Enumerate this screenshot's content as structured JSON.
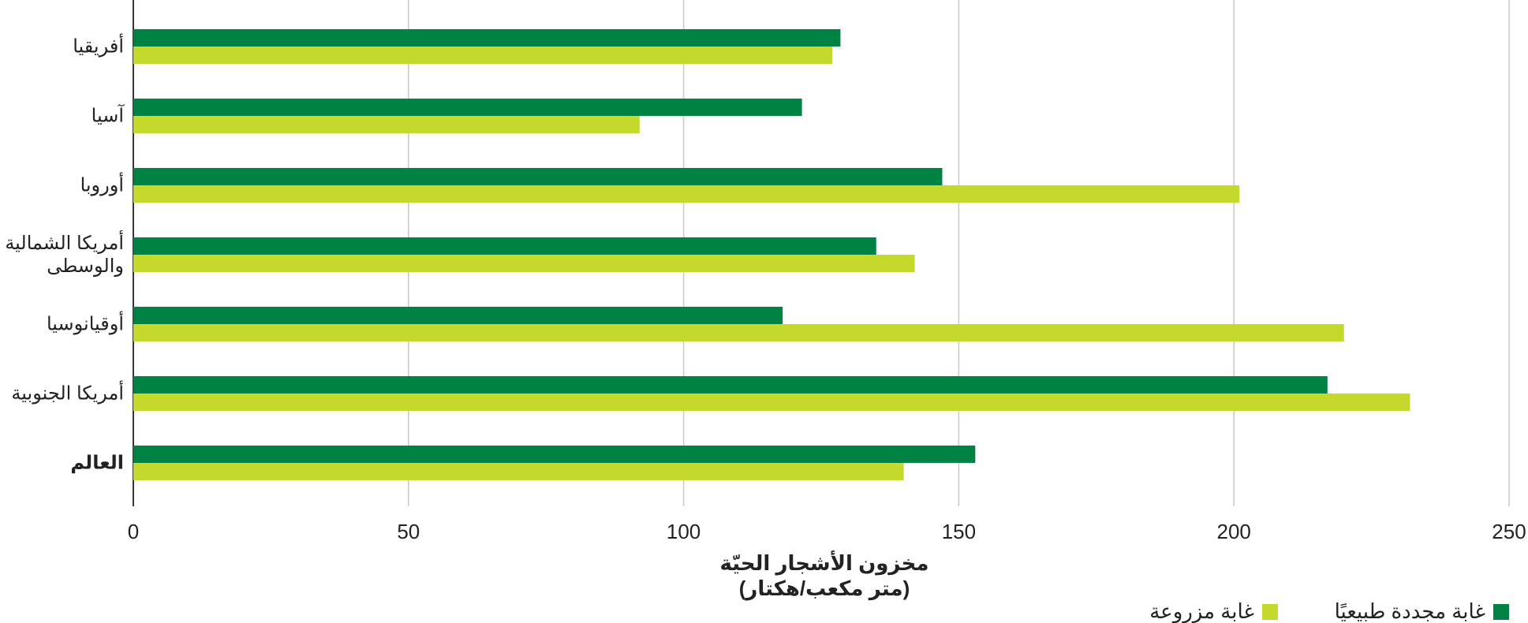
{
  "chart_data": {
    "type": "hbar",
    "categories": [
      "أفريقيا",
      "آسيا",
      "أوروبا",
      "أمريكا الشمالية والوسطى",
      "أوقيانوسيا",
      "أمريكا الجنوبية",
      "العالم"
    ],
    "series": [
      {
        "name": "غابة مجددة طبيعيًا",
        "color": "#008245",
        "values": [
          128.5,
          121.5,
          147,
          135,
          118,
          217,
          153
        ]
      },
      {
        "name": "غابة مزروعة",
        "color": "#c5d92d",
        "values": [
          127,
          92,
          201,
          142,
          220,
          232,
          140
        ]
      }
    ],
    "xlabel": [
      "مخزون الأشجار الحيّة",
      "(متر مكعب/هكتار)"
    ],
    "xlim": [
      0,
      250
    ],
    "xticks": [
      0,
      50,
      100,
      150,
      200,
      250
    ],
    "grid": true
  }
}
